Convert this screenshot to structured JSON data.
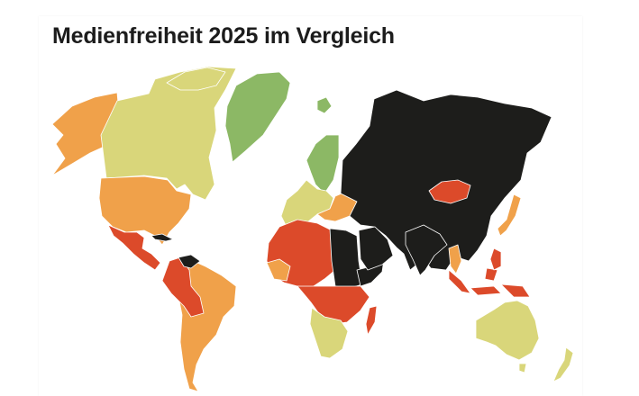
{
  "title": "Medienfreiheit 2025 im Vergleich",
  "colors": {
    "green": "#8cb865",
    "yellow": "#d9d67a",
    "orange": "#f0a14a",
    "red": "#dc4a2a",
    "black": "#1d1d1b",
    "background": "#ffffff"
  }
}
